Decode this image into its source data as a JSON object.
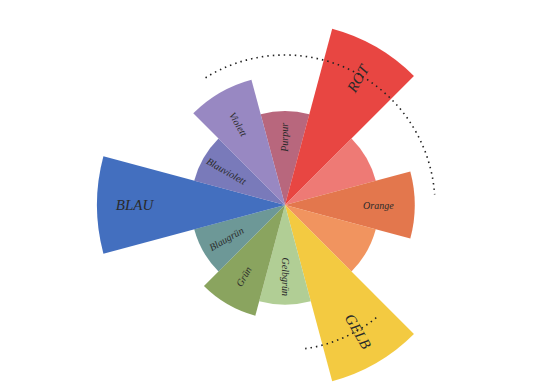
{
  "chart_data": {
    "type": "polar_area",
    "categories": [
      "Purpur",
      "ROT",
      null,
      "Orange",
      null,
      "GELB",
      "Gelbgrün",
      "Grün",
      "Blaugrün",
      "BLAU",
      "Blauviolett",
      "Violett"
    ],
    "values": [
      50,
      97,
      50,
      69,
      50,
      97,
      53,
      61,
      50,
      100,
      50,
      69
    ],
    "colors": [
      "#b0566f",
      "#e5322e",
      "#ec6b66",
      "#e0683a",
      "#f0884e",
      "#f2c42c",
      "#a9c98a",
      "#7d9a4e",
      "#5d8d8c",
      "#2f5fb8",
      "#6a6cb2",
      "#8d7bbb"
    ],
    "tick_labels": false
  }
}
